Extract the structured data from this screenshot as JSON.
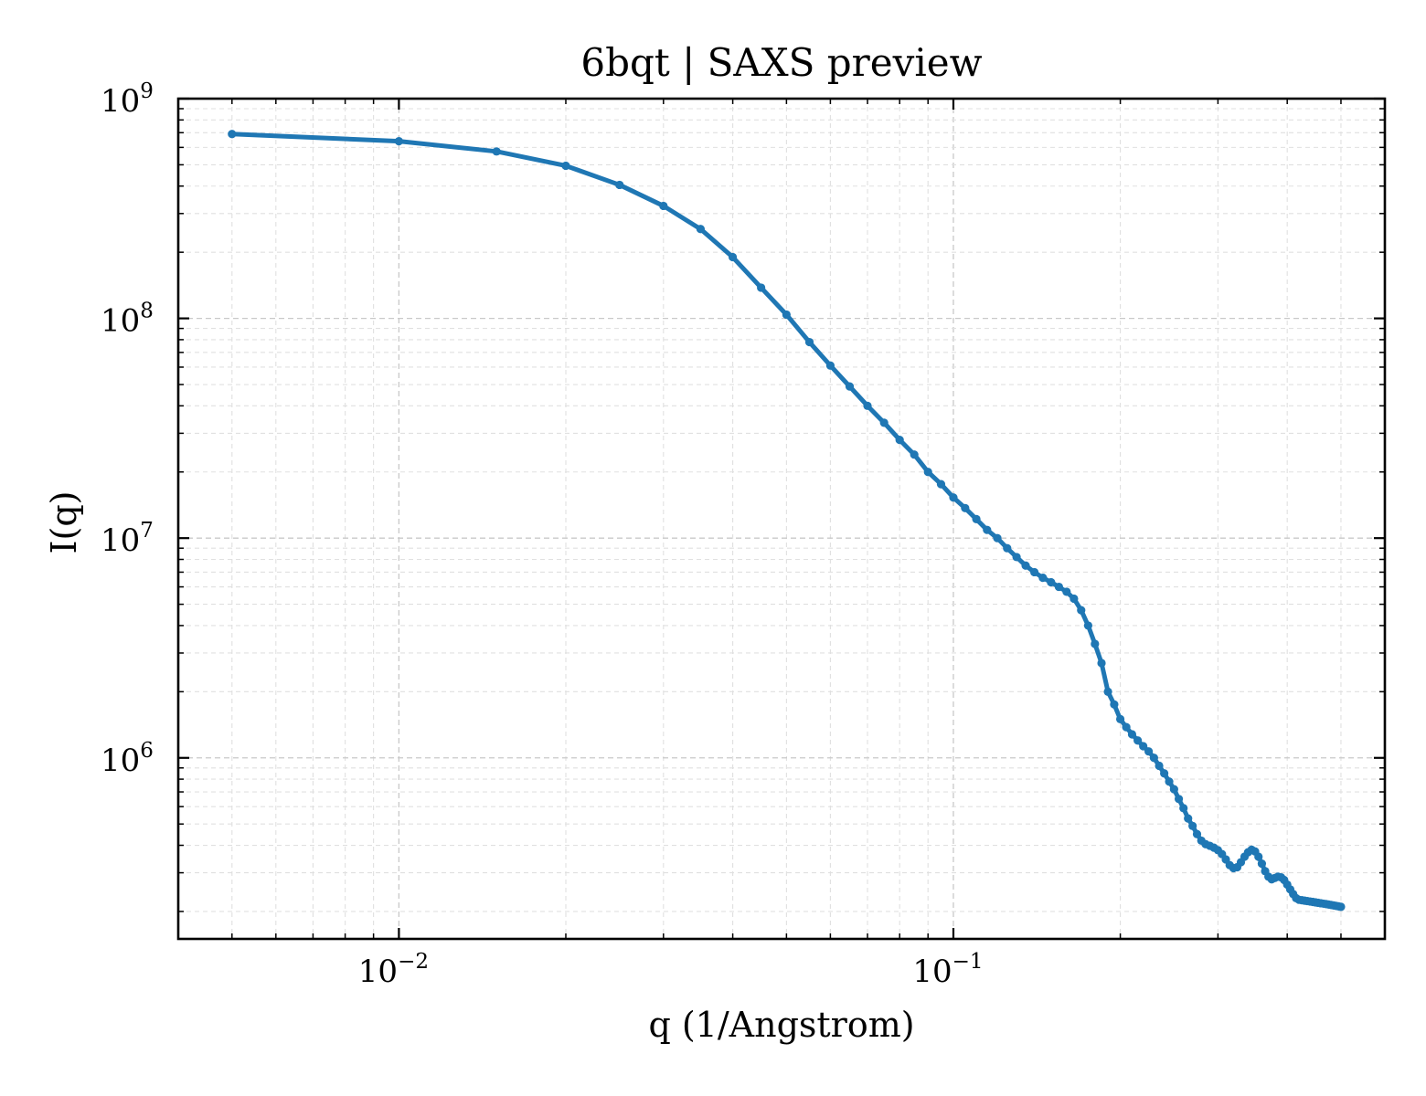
{
  "chart_data": {
    "type": "line",
    "title": "6bqt | SAXS preview",
    "xlabel": "q (1/Angstrom)",
    "ylabel": "I(q)",
    "xscale": "log",
    "yscale": "log",
    "xlim": [
      0.004,
      0.6
    ],
    "ylim": [
      150000,
      1000000000
    ],
    "grid": "on (major and minor, dashed)",
    "x_ticks": [
      {
        "base": "10",
        "exp": "−2",
        "value": 0.01
      },
      {
        "base": "10",
        "exp": "−1",
        "value": 0.1
      }
    ],
    "y_ticks": [
      {
        "base": "10",
        "exp": "6",
        "value": 1000000
      },
      {
        "base": "10",
        "exp": "7",
        "value": 10000000
      },
      {
        "base": "10",
        "exp": "8",
        "value": 100000000
      },
      {
        "base": "10",
        "exp": "9",
        "value": 1000000000
      }
    ],
    "color": "#1f77b4",
    "series": [
      {
        "x": [
          0.005,
          0.01,
          0.015,
          0.02,
          0.025,
          0.03,
          0.035,
          0.04,
          0.045,
          0.05,
          0.055,
          0.06,
          0.065,
          0.07,
          0.075,
          0.08,
          0.085,
          0.09,
          0.095,
          0.1,
          0.105,
          0.11,
          0.115,
          0.12,
          0.125,
          0.13,
          0.135,
          0.14,
          0.145,
          0.15,
          0.155,
          0.16,
          0.165,
          0.17,
          0.175,
          0.18,
          0.185,
          0.19,
          0.195,
          0.2,
          0.205,
          0.21,
          0.215,
          0.22,
          0.225,
          0.23,
          0.235,
          0.24,
          0.245,
          0.25,
          0.255,
          0.26,
          0.265,
          0.27,
          0.275,
          0.28,
          0.285,
          0.29,
          0.295,
          0.3,
          0.305,
          0.31,
          0.315,
          0.32,
          0.325,
          0.33,
          0.335,
          0.34,
          0.345,
          0.35,
          0.355,
          0.36,
          0.365,
          0.37,
          0.375,
          0.38,
          0.385,
          0.39,
          0.395,
          0.4,
          0.405,
          0.41,
          0.415,
          0.42,
          0.425,
          0.43,
          0.435,
          0.44,
          0.445,
          0.45,
          0.455,
          0.46,
          0.465,
          0.47,
          0.475,
          0.48,
          0.485,
          0.49,
          0.495,
          0.5
        ],
        "y": [
          690000000,
          640000000,
          575000000,
          495000000,
          405000000,
          325000000,
          255000000,
          190000000,
          138000000,
          104000000,
          78000000,
          61000000,
          49000000,
          40000000,
          33500000,
          28000000,
          24000000,
          20000000,
          17600000,
          15300000,
          13700000,
          12200000,
          10900000,
          10000000,
          9000000,
          8200000,
          7500000,
          7000000,
          6600000,
          6300000,
          6000000,
          5700000,
          5300000,
          4700000,
          4000000,
          3300000,
          2700000,
          2000000,
          1750000,
          1500000,
          1380000,
          1280000,
          1200000,
          1130000,
          1070000,
          1000000,
          920000,
          850000,
          780000,
          720000,
          650000,
          590000,
          530000,
          490000,
          450000,
          420000,
          405000,
          398000,
          390000,
          380000,
          365000,
          345000,
          325000,
          315000,
          318000,
          335000,
          355000,
          372000,
          382000,
          375000,
          355000,
          330000,
          305000,
          288000,
          280000,
          284000,
          288000,
          286000,
          278000,
          265000,
          252000,
          240000,
          230000,
          226000,
          225000,
          224000,
          223000,
          222000,
          221000,
          220000,
          219000,
          218000,
          217000,
          216000,
          215000,
          214000,
          213000,
          212000,
          211000,
          210000
        ]
      }
    ]
  }
}
